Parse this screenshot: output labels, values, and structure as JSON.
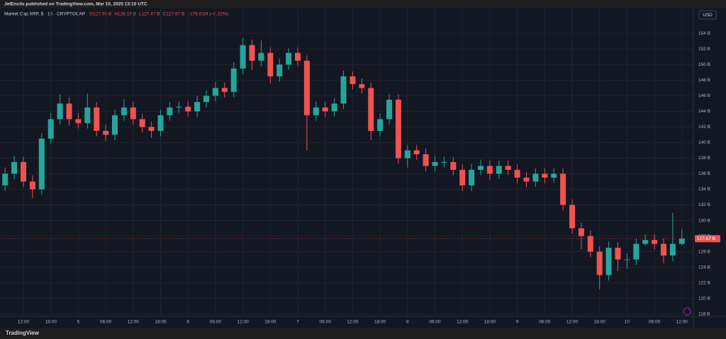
{
  "header": {
    "publisher": "JetEncila published on TradingView.com, Mar 10, 2025 13:10 UTC",
    "symbol": "Market Cap XRP, $ · 15 · CRYPTOCAP",
    "ohlc": [
      "O127.95 B",
      "H128.15 B",
      "L127.47 B",
      "C127.67 B",
      "−278.61M (−0.22%)"
    ]
  },
  "currency": "USD",
  "footer": "TradingView",
  "chart_data": {
    "type": "candlestick",
    "categories": [
      null,
      null,
      "12:00",
      null,
      null,
      "18:00",
      null,
      null,
      "5",
      null,
      null,
      "06:00",
      null,
      null,
      "12:00",
      null,
      null,
      "18:00",
      null,
      null,
      "6",
      null,
      null,
      "06:00",
      null,
      null,
      "12:00",
      null,
      null,
      "18:00",
      null,
      null,
      "7",
      null,
      null,
      "06:00",
      null,
      null,
      "12:00",
      null,
      null,
      "18:00",
      null,
      null,
      "8",
      null,
      null,
      "06:00",
      null,
      null,
      "12:00",
      null,
      null,
      "18:00",
      null,
      null,
      "9",
      null,
      null,
      "06:00",
      null,
      null,
      "12:00",
      null,
      null,
      "18:00",
      null,
      null,
      "10",
      null,
      null,
      "06:00",
      null,
      null,
      "12:00"
    ],
    "open": [
      134.5,
      136,
      137.5,
      135,
      134,
      140.5,
      143,
      145,
      143,
      142.5,
      144.5,
      141.5,
      141,
      143.5,
      144.5,
      143,
      142,
      141.5,
      143.5,
      144.5,
      144.6,
      144,
      145.2,
      146,
      147,
      146.5,
      149.5,
      152.5,
      150.5,
      151.5,
      148.5,
      150,
      151.5,
      150.5,
      143.5,
      144.5,
      144,
      145,
      148.5,
      147.5,
      147,
      141.5,
      143,
      145.5,
      138,
      139,
      138.5,
      137,
      137.5,
      137.5,
      136.5,
      134.5,
      136.5,
      137,
      136,
      137,
      136.5,
      135.5,
      135,
      136,
      135.5,
      136,
      132,
      129,
      128,
      126,
      123,
      126.5,
      125,
      125,
      127,
      127.5,
      127,
      125.5,
      127
    ],
    "high": [
      136.8,
      138.3,
      138.2,
      135.8,
      141.2,
      143.8,
      146.2,
      145.8,
      143.8,
      146.3,
      145.2,
      142.3,
      144.2,
      145.6,
      145.2,
      143.7,
      142.7,
      144.2,
      145.2,
      145.3,
      145.3,
      146,
      146.7,
      147.8,
      147.7,
      150.3,
      153.4,
      153.2,
      153.1,
      152.2,
      150.8,
      152.1,
      152.2,
      151.2,
      145.3,
      145.2,
      145.7,
      149.2,
      149.1,
      148.2,
      147.7,
      143.7,
      146.2,
      146.2,
      139.7,
      139.7,
      139.2,
      138.3,
      138.2,
      138.2,
      137.2,
      137.3,
      137.8,
      137.7,
      137.7,
      137.7,
      137.2,
      136.2,
      136.7,
      136.7,
      136.7,
      136.7,
      132.7,
      129.7,
      128.7,
      126.7,
      127.3,
      127.2,
      125.8,
      127.7,
      128.2,
      128.2,
      127.7,
      131,
      128.9
    ],
    "low": [
      133.8,
      135.3,
      134.3,
      132.9,
      133.3,
      139.8,
      142.3,
      142.2,
      141.8,
      141.8,
      140.8,
      140.2,
      140.3,
      142.8,
      142.3,
      141.3,
      140.6,
      140.8,
      142.8,
      143.8,
      143.3,
      143.3,
      144.5,
      145.3,
      145.8,
      145.8,
      148.8,
      149.3,
      149.8,
      147.6,
      147.8,
      149.3,
      149.8,
      139,
      142.8,
      143.3,
      143.3,
      144.3,
      146.8,
      146.3,
      140.3,
      140.8,
      142.3,
      137.3,
      136.8,
      137.8,
      136.3,
      136.3,
      136.8,
      135.8,
      133.8,
      133.8,
      135.8,
      135.2,
      135.3,
      135.8,
      134.8,
      134.3,
      134.3,
      134.8,
      134.8,
      131.3,
      128.3,
      126.3,
      125.3,
      121.2,
      122.3,
      123.5,
      123.8,
      124.3,
      126.8,
      126.3,
      124.5,
      124.8,
      126.8
    ],
    "close": [
      136,
      137.5,
      135,
      134,
      140.5,
      143,
      145,
      143,
      142.5,
      144.5,
      141.5,
      141,
      143.5,
      144.5,
      143,
      142,
      141.5,
      143.5,
      144.5,
      144.6,
      144,
      145.2,
      146,
      147,
      146.5,
      149.5,
      152.5,
      150.5,
      151.5,
      148.5,
      150,
      151.5,
      150.5,
      143.5,
      144.5,
      144,
      145,
      148.5,
      147.5,
      147,
      141.5,
      143,
      145.5,
      138,
      139,
      138.5,
      137,
      137.5,
      137.5,
      136.5,
      134.5,
      136.5,
      137,
      136,
      137,
      136.5,
      135.5,
      135,
      136,
      135.5,
      136,
      132,
      129,
      128,
      126,
      123,
      126.5,
      125,
      125,
      127,
      127.5,
      127,
      125.5,
      127,
      127.67
    ],
    "up_color": "#26a69a",
    "down_color": "#ef5350",
    "ylim": [
      117.7,
      157.2
    ],
    "yticks": [
      {
        "value": 118,
        "label": "118 B"
      },
      {
        "value": 120,
        "label": "120 B"
      },
      {
        "value": 122,
        "label": "122 B"
      },
      {
        "value": 124,
        "label": "124 B"
      },
      {
        "value": 126,
        "label": "126 B"
      },
      {
        "value": 128,
        "label": "128 B"
      },
      {
        "value": 130,
        "label": "130 B"
      },
      {
        "value": 132,
        "label": "132 B"
      },
      {
        "value": 134,
        "label": "134 B"
      },
      {
        "value": 136,
        "label": "136 B"
      },
      {
        "value": 138,
        "label": "138 B"
      },
      {
        "value": 140,
        "label": "140 B"
      },
      {
        "value": 142,
        "label": "142 B"
      },
      {
        "value": 144,
        "label": "144 B"
      },
      {
        "value": 146,
        "label": "146 B"
      },
      {
        "value": 148,
        "label": "148 B"
      },
      {
        "value": 150,
        "label": "150 B"
      },
      {
        "value": 152,
        "label": "152 B"
      },
      {
        "value": 154,
        "label": "154 B"
      }
    ],
    "last_price": {
      "value": 127.67,
      "label": "127.67 B"
    },
    "grid": true
  }
}
